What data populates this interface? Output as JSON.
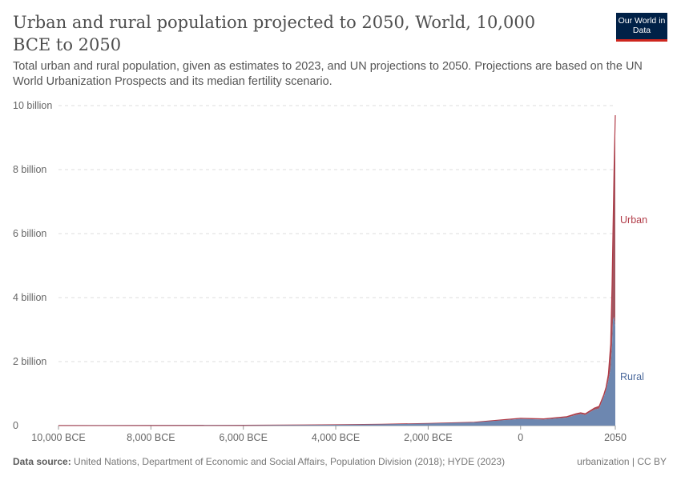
{
  "header": {
    "title": "Urban and rural population projected to 2050, World, 10,000 BCE to 2050",
    "subtitle": "Total urban and rural population, given as estimates to 2023, and UN projections to 2050. Projections are based on the UN World Urbanization Prospects and its median fertility scenario.",
    "logo": "Our World in Data"
  },
  "footer": {
    "source_label": "Data source:",
    "source": "United Nations, Department of Economic and Social Affairs, Population Division (2018); HYDE (2023)",
    "license": "urbanization | CC BY"
  },
  "colors": {
    "rural": "#6d87b0",
    "urban": "#a3555f",
    "urban_line": "#b13b47"
  },
  "chart_data": {
    "type": "area",
    "stacked": true,
    "title": "Urban and rural population projected to 2050, World, 10,000 BCE to 2050",
    "xlim": [
      -10000,
      2050
    ],
    "ylim": [
      0,
      10000000000
    ],
    "y_ticks": [
      {
        "v": 0,
        "label": "0"
      },
      {
        "v": 2000000000.0,
        "label": "2 billion"
      },
      {
        "v": 4000000000.0,
        "label": "4 billion"
      },
      {
        "v": 6000000000.0,
        "label": "6 billion"
      },
      {
        "v": 8000000000.0,
        "label": "8 billion"
      },
      {
        "v": 10000000000.0,
        "label": "10 billion"
      }
    ],
    "x_ticks": [
      {
        "v": -10000,
        "label": "10,000 BCE"
      },
      {
        "v": -8000,
        "label": "8,000 BCE"
      },
      {
        "v": -6000,
        "label": "6,000 BCE"
      },
      {
        "v": -4000,
        "label": "4,000 BCE"
      },
      {
        "v": -2000,
        "label": "2,000 BCE"
      },
      {
        "v": 0,
        "label": "0"
      },
      {
        "v": 2050,
        "label": "2050"
      }
    ],
    "grid": "horizontal-dashed",
    "x": [
      -10000,
      -8000,
      -6000,
      -4000,
      -3000,
      -2000,
      -1000,
      0,
      500,
      1000,
      1200,
      1300,
      1400,
      1500,
      1600,
      1700,
      1800,
      1850,
      1900,
      1950,
      1980,
      2000,
      2023,
      2050
    ],
    "series": [
      {
        "name": "Rural",
        "values": [
          0.0045,
          0.006,
          0.01,
          0.025,
          0.04,
          0.065,
          0.1,
          0.21,
          0.19,
          0.25,
          0.33,
          0.36,
          0.33,
          0.42,
          0.5,
          0.53,
          0.89,
          1.1,
          1.4,
          1.8,
          2.5,
          3.3,
          3.4,
          3.1
        ]
      },
      {
        "name": "Urban",
        "values": [
          0,
          0.0001,
          0.0002,
          0.0005,
          0.001,
          0.002,
          0.005,
          0.02,
          0.02,
          0.03,
          0.04,
          0.04,
          0.04,
          0.04,
          0.05,
          0.07,
          0.07,
          0.1,
          0.2,
          0.75,
          1.9,
          2.8,
          4.6,
          6.6
        ]
      }
    ],
    "value_unit": "billion",
    "legend": "inline-right"
  }
}
